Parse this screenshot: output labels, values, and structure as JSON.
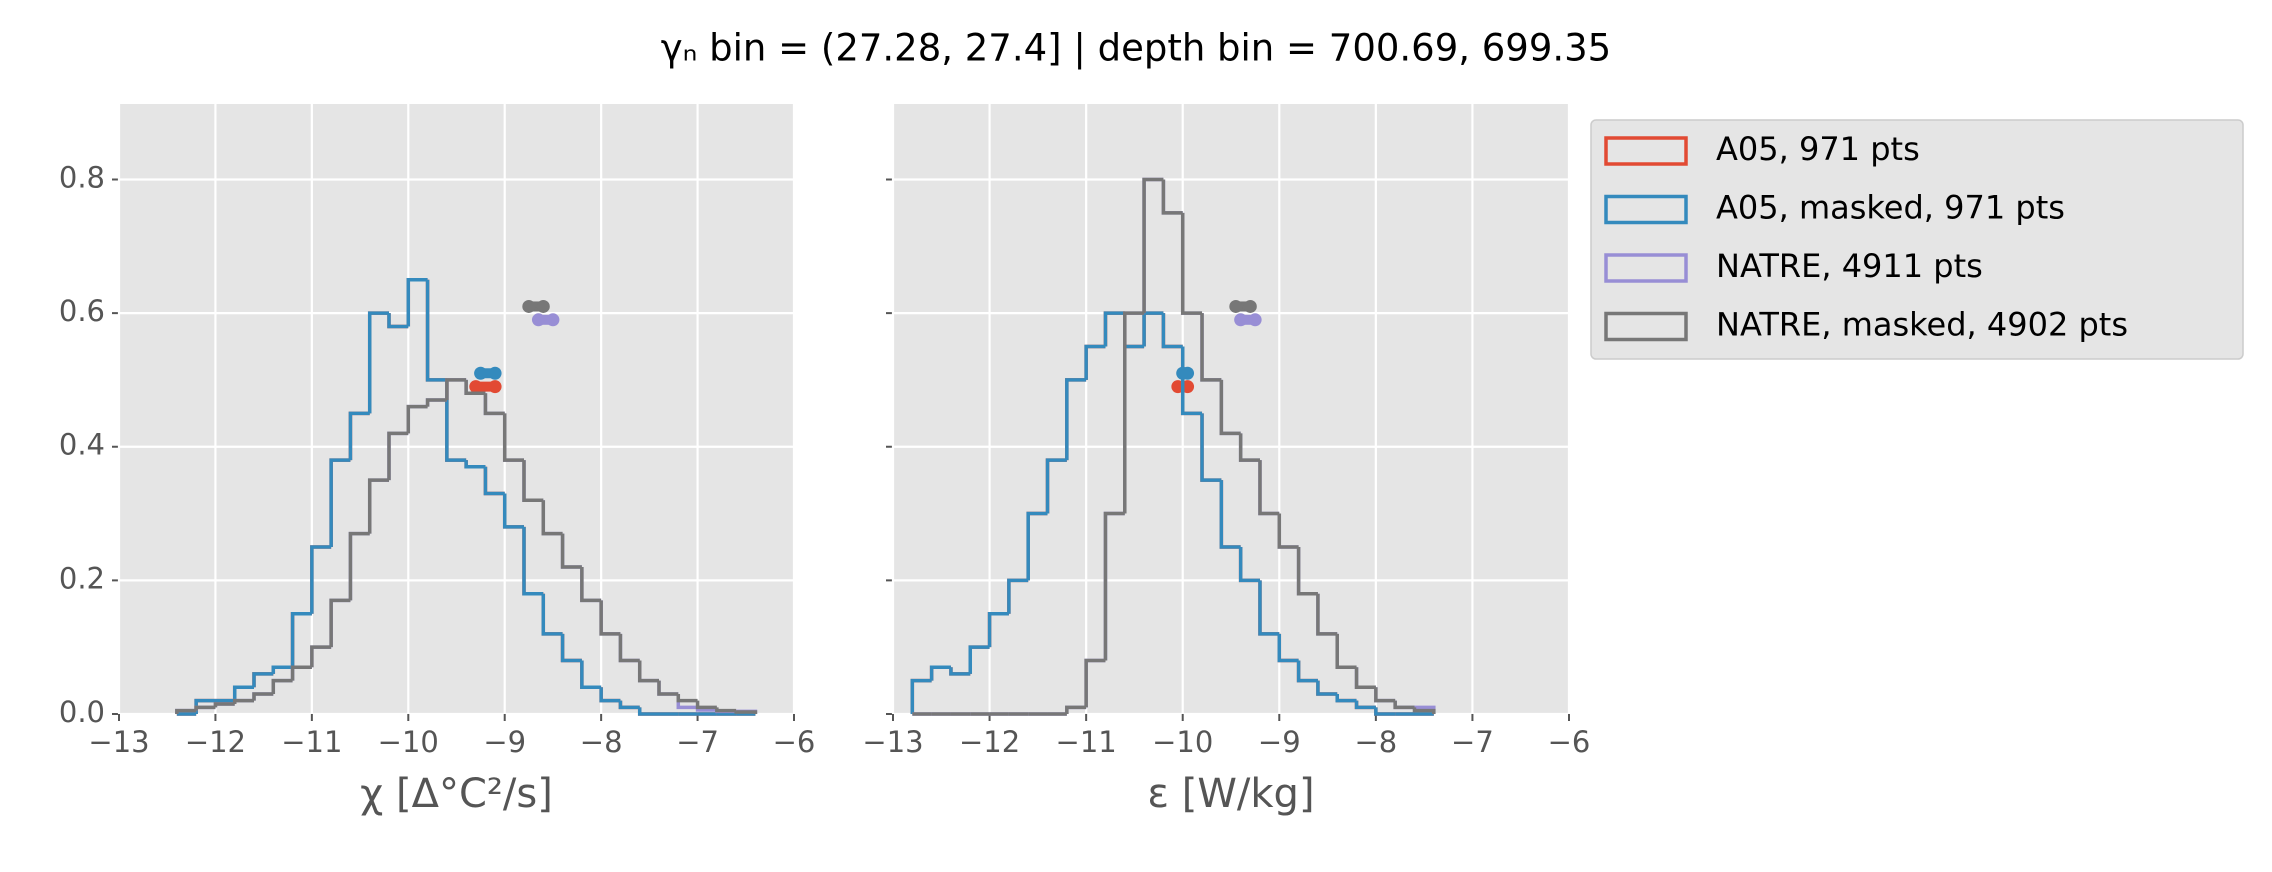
{
  "chart_data": [
    {
      "type": "histogram",
      "title": "γₙ bin = (27.28, 27.4] | depth bin = 700.69, 699.35",
      "xlabel": "χ [Δ°C²/s]",
      "xlim": [
        -13,
        -6
      ],
      "xticks": [
        {
          "value": -13,
          "label": "−13"
        },
        {
          "value": -12,
          "label": "−12"
        },
        {
          "value": -11,
          "label": "−11"
        },
        {
          "value": -10,
          "label": "−10"
        },
        {
          "value": -9,
          "label": "−9"
        },
        {
          "value": -8,
          "label": "−8"
        },
        {
          "value": -7,
          "label": "−7"
        },
        {
          "value": -6,
          "label": "−6"
        }
      ],
      "ylim": [
        0,
        0.913
      ],
      "yticks": [
        {
          "value": 0,
          "label": "0.0"
        },
        0.2,
        0.4,
        0.6,
        0.8
      ],
      "grid": true,
      "bins": [
        -12.4,
        -12.2,
        -12.0,
        -11.8,
        -11.6,
        -11.4,
        -11.2,
        -11.0,
        -10.8,
        -10.6,
        -10.4,
        -10.2,
        -10.0,
        -9.8,
        -9.6,
        -9.4,
        -9.2,
        -9.0,
        -8.8,
        -8.6,
        -8.4,
        -8.2,
        -8.0,
        -7.8,
        -7.6,
        -7.4,
        -7.2,
        -7.0,
        -6.8,
        -6.6,
        -6.4
      ],
      "series": [
        {
          "name": "A05, 971 pts",
          "color": "#E24A33",
          "values": [
            0,
            0.02,
            0.02,
            0.04,
            0.06,
            0.07,
            0.15,
            0.25,
            0.38,
            0.45,
            0.6,
            0.58,
            0.65,
            0.5,
            0.38,
            0.37,
            0.33,
            0.28,
            0.18,
            0.12,
            0.08,
            0.04,
            0.02,
            0.01,
            0,
            0,
            0,
            0,
            0,
            0
          ],
          "marker_x": [
            -9.3,
            -9.1
          ],
          "marker_y": 0.49
        },
        {
          "name": "A05, masked,  971 pts",
          "color": "#348ABD",
          "values": [
            0,
            0.02,
            0.02,
            0.04,
            0.06,
            0.07,
            0.15,
            0.25,
            0.38,
            0.45,
            0.6,
            0.58,
            0.65,
            0.5,
            0.38,
            0.37,
            0.33,
            0.28,
            0.18,
            0.12,
            0.08,
            0.04,
            0.02,
            0.01,
            0,
            0,
            0,
            0,
            0,
            0
          ],
          "marker_x": [
            -9.25,
            -9.1
          ],
          "marker_y": 0.51
        },
        {
          "name": "NATRE, 4911 pts",
          "color": "#988ED5",
          "values": [
            0.005,
            0.01,
            0.015,
            0.02,
            0.03,
            0.05,
            0.07,
            0.1,
            0.17,
            0.27,
            0.35,
            0.42,
            0.46,
            0.47,
            0.5,
            0.48,
            0.45,
            0.38,
            0.32,
            0.27,
            0.22,
            0.17,
            0.12,
            0.08,
            0.05,
            0.03,
            0.01,
            0.006,
            0.004,
            0.004
          ],
          "marker_x": [
            -8.65,
            -8.5
          ],
          "marker_y": 0.59
        },
        {
          "name": "NATRE, masked,  4902 pts",
          "color": "#777777",
          "values": [
            0.005,
            0.01,
            0.015,
            0.02,
            0.03,
            0.05,
            0.07,
            0.1,
            0.17,
            0.27,
            0.35,
            0.42,
            0.46,
            0.47,
            0.5,
            0.48,
            0.45,
            0.38,
            0.32,
            0.27,
            0.22,
            0.17,
            0.12,
            0.08,
            0.05,
            0.03,
            0.02,
            0.01,
            0.005,
            0.003
          ],
          "marker_x": [
            -8.75,
            -8.6
          ],
          "marker_y": 0.61
        }
      ]
    },
    {
      "type": "histogram",
      "xlabel": "ε [W/kg]",
      "xlim": [
        -13,
        -6
      ],
      "xticks": [
        {
          "value": -13,
          "label": "−13"
        },
        {
          "value": -12,
          "label": "−12"
        },
        {
          "value": -11,
          "label": "−11"
        },
        {
          "value": -10,
          "label": "−10"
        },
        {
          "value": -9,
          "label": "−9"
        },
        {
          "value": -8,
          "label": "−8"
        },
        {
          "value": -7,
          "label": "−7"
        },
        {
          "value": -6,
          "label": "−6"
        }
      ],
      "ylim": [
        0,
        0.913
      ],
      "yticks": [
        0,
        0.2,
        0.4,
        0.6,
        0.8
      ],
      "grid": true,
      "bins": [
        -12.8,
        -12.6,
        -12.4,
        -12.2,
        -12.0,
        -11.8,
        -11.6,
        -11.4,
        -11.2,
        -11.0,
        -10.8,
        -10.6,
        -10.4,
        -10.2,
        -10.0,
        -9.8,
        -9.6,
        -9.4,
        -9.2,
        -9.0,
        -8.8,
        -8.6,
        -8.4,
        -8.2,
        -8.0,
        -7.8,
        -7.6,
        -7.4
      ],
      "series": [
        {
          "color": "#E24A33",
          "values": [
            0.05,
            0.07,
            0.06,
            0.1,
            0.15,
            0.2,
            0.3,
            0.38,
            0.5,
            0.55,
            0.6,
            0.55,
            0.6,
            0.55,
            0.45,
            0.35,
            0.25,
            0.2,
            0.12,
            0.08,
            0.05,
            0.03,
            0.02,
            0.01,
            0,
            0,
            0
          ],
          "marker_x": [
            -10.05,
            -9.95
          ],
          "marker_y": 0.49
        },
        {
          "color": "#348ABD",
          "values": [
            0.05,
            0.07,
            0.06,
            0.1,
            0.15,
            0.2,
            0.3,
            0.38,
            0.5,
            0.55,
            0.6,
            0.55,
            0.6,
            0.55,
            0.45,
            0.35,
            0.25,
            0.2,
            0.12,
            0.08,
            0.05,
            0.03,
            0.02,
            0.01,
            0,
            0,
            0
          ],
          "marker_x": [
            -10.0,
            -9.95
          ],
          "marker_y": 0.51
        },
        {
          "color": "#988ED5",
          "values": [
            0,
            0,
            0,
            0,
            0,
            0,
            0,
            0,
            0.01,
            0.08,
            0.3,
            0.6,
            0.8,
            0.75,
            0.6,
            0.5,
            0.42,
            0.38,
            0.3,
            0.25,
            0.18,
            0.12,
            0.07,
            0.04,
            0.02,
            0.01,
            0.01
          ],
          "marker_x": [
            -9.4,
            -9.25
          ],
          "marker_y": 0.59
        },
        {
          "color": "#777777",
          "values": [
            0,
            0,
            0,
            0,
            0,
            0,
            0,
            0,
            0.01,
            0.08,
            0.3,
            0.6,
            0.8,
            0.75,
            0.6,
            0.5,
            0.42,
            0.38,
            0.3,
            0.25,
            0.18,
            0.12,
            0.07,
            0.04,
            0.02,
            0.01,
            0.005
          ],
          "marker_x": [
            -9.45,
            -9.3
          ],
          "marker_y": 0.61
        }
      ]
    }
  ]
}
